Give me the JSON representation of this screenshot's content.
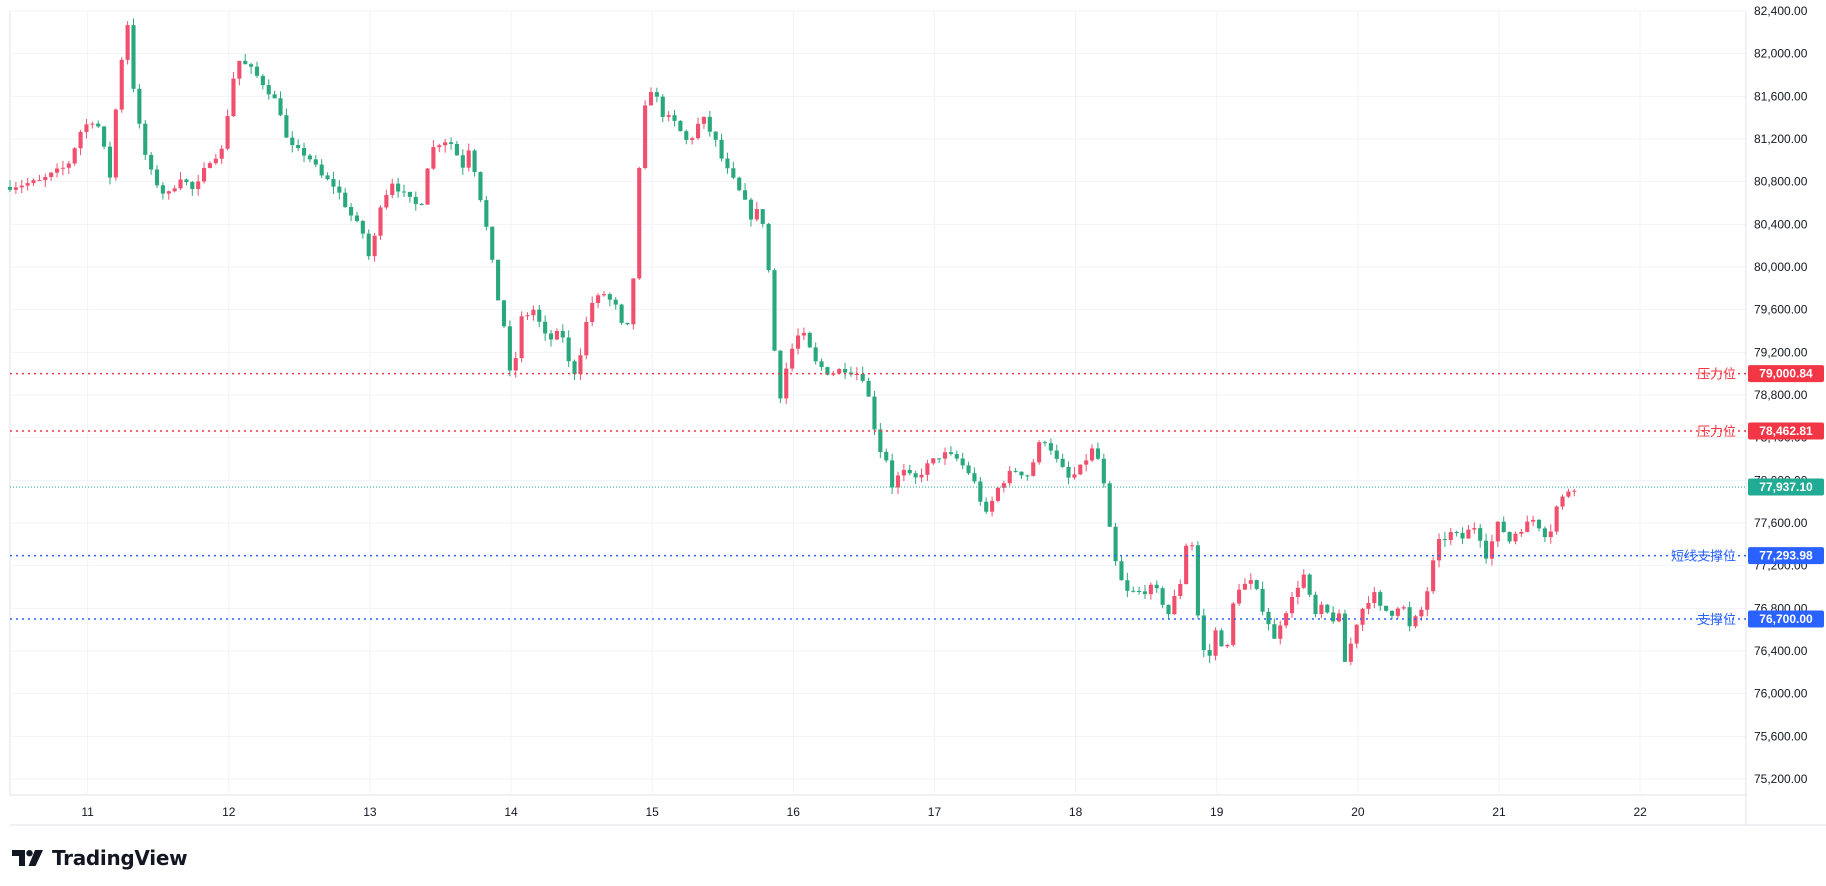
{
  "brand": {
    "name": "TradingView",
    "logo_icon": "tradingview-logo-icon"
  },
  "colors": {
    "up": "#f0506e",
    "down": "#2aa87d",
    "resistance": "#f23645",
    "support": "#2962ff",
    "last_price": "#22ab94"
  },
  "chart_data": {
    "type": "candlestick",
    "title": "",
    "xlabel": "",
    "ylabel": "",
    "ylim": [
      75050,
      82400
    ],
    "y_ticks": [
      "82,400.00",
      "82,000.00",
      "81,600.00",
      "81,200.00",
      "80,800.00",
      "80,400.00",
      "80,000.00",
      "79,600.00",
      "79,200.00",
      "78,800.00",
      "78,400.00",
      "78,000.00",
      "77,600.00",
      "77,200.00",
      "76,800.00",
      "76,400.00",
      "76,000.00",
      "75,600.00",
      "75,200.00"
    ],
    "x_ticks": [
      "11",
      "12",
      "13",
      "14",
      "15",
      "16",
      "17",
      "18",
      "19",
      "20",
      "21",
      "22"
    ],
    "x_range_days": [
      10.45,
      22.75
    ],
    "grid": true,
    "bar_interval_hours": 1,
    "price_path": [
      [
        10.45,
        80750
      ],
      [
        10.7,
        80800
      ],
      [
        10.9,
        80950
      ],
      [
        11.0,
        81300
      ],
      [
        11.1,
        81400
      ],
      [
        11.15,
        81150
      ],
      [
        11.2,
        80850
      ],
      [
        11.25,
        81600
      ],
      [
        11.32,
        82350
      ],
      [
        11.38,
        81500
      ],
      [
        11.45,
        81050
      ],
      [
        11.5,
        80850
      ],
      [
        11.6,
        80650
      ],
      [
        11.7,
        80850
      ],
      [
        11.8,
        80700
      ],
      [
        11.9,
        81000
      ],
      [
        12.0,
        81100
      ],
      [
        12.05,
        81600
      ],
      [
        12.1,
        81950
      ],
      [
        12.2,
        81850
      ],
      [
        12.3,
        81700
      ],
      [
        12.35,
        81600
      ],
      [
        12.4,
        81500
      ],
      [
        12.45,
        81200
      ],
      [
        12.5,
        81100
      ],
      [
        12.6,
        81050
      ],
      [
        12.7,
        80850
      ],
      [
        12.8,
        80750
      ],
      [
        12.9,
        80500
      ],
      [
        13.0,
        80300
      ],
      [
        13.05,
        80000
      ],
      [
        13.1,
        80550
      ],
      [
        13.2,
        80800
      ],
      [
        13.3,
        80650
      ],
      [
        13.4,
        80550
      ],
      [
        13.45,
        80950
      ],
      [
        13.5,
        81150
      ],
      [
        13.6,
        81200
      ],
      [
        13.7,
        80950
      ],
      [
        13.75,
        81150
      ],
      [
        13.8,
        80800
      ],
      [
        13.85,
        80500
      ],
      [
        13.9,
        80100
      ],
      [
        13.95,
        79700
      ],
      [
        14.0,
        79400
      ],
      [
        14.05,
        78800
      ],
      [
        14.1,
        79500
      ],
      [
        14.2,
        79600
      ],
      [
        14.3,
        79300
      ],
      [
        14.4,
        79400
      ],
      [
        14.45,
        79100
      ],
      [
        14.5,
        79000
      ],
      [
        14.55,
        79300
      ],
      [
        14.6,
        79650
      ],
      [
        14.7,
        79750
      ],
      [
        14.8,
        79600
      ],
      [
        14.85,
        79300
      ],
      [
        14.9,
        79700
      ],
      [
        14.95,
        80900
      ],
      [
        15.0,
        81600
      ],
      [
        15.05,
        81700
      ],
      [
        15.1,
        81450
      ],
      [
        15.2,
        81350
      ],
      [
        15.3,
        81150
      ],
      [
        15.35,
        81300
      ],
      [
        15.4,
        81400
      ],
      [
        15.5,
        81150
      ],
      [
        15.55,
        80950
      ],
      [
        15.6,
        80850
      ],
      [
        15.7,
        80600
      ],
      [
        15.75,
        80450
      ],
      [
        15.8,
        80550
      ],
      [
        15.85,
        80300
      ],
      [
        15.9,
        79300
      ],
      [
        15.95,
        78800
      ],
      [
        16.0,
        79100
      ],
      [
        16.05,
        79300
      ],
      [
        16.1,
        79400
      ],
      [
        16.2,
        79100
      ],
      [
        16.3,
        79000
      ],
      [
        16.4,
        79050
      ],
      [
        16.5,
        79000
      ],
      [
        16.55,
        78950
      ],
      [
        16.6,
        78600
      ],
      [
        16.65,
        78300
      ],
      [
        16.7,
        78200
      ],
      [
        16.75,
        77900
      ],
      [
        16.8,
        78100
      ],
      [
        16.9,
        78000
      ],
      [
        17.0,
        78150
      ],
      [
        17.1,
        78250
      ],
      [
        17.2,
        78200
      ],
      [
        17.3,
        78050
      ],
      [
        17.35,
        77900
      ],
      [
        17.4,
        77650
      ],
      [
        17.5,
        77950
      ],
      [
        17.6,
        78100
      ],
      [
        17.7,
        78050
      ],
      [
        17.75,
        78200
      ],
      [
        17.8,
        78400
      ],
      [
        17.85,
        78350
      ],
      [
        17.9,
        78200
      ],
      [
        18.0,
        78000
      ],
      [
        18.1,
        78150
      ],
      [
        18.15,
        78300
      ],
      [
        18.2,
        78200
      ],
      [
        18.25,
        77900
      ],
      [
        18.3,
        77350
      ],
      [
        18.35,
        77100
      ],
      [
        18.4,
        76950
      ],
      [
        18.5,
        76950
      ],
      [
        18.6,
        77000
      ],
      [
        18.7,
        76750
      ],
      [
        18.8,
        77100
      ],
      [
        18.85,
        77700
      ],
      [
        18.9,
        76800
      ],
      [
        18.95,
        76400
      ],
      [
        19.0,
        76350
      ],
      [
        19.05,
        76700
      ],
      [
        19.1,
        76250
      ],
      [
        19.15,
        76800
      ],
      [
        19.2,
        77000
      ],
      [
        19.3,
        77050
      ],
      [
        19.35,
        76850
      ],
      [
        19.4,
        76700
      ],
      [
        19.45,
        76500
      ],
      [
        19.5,
        76700
      ],
      [
        19.6,
        76950
      ],
      [
        19.65,
        77150
      ],
      [
        19.7,
        76900
      ],
      [
        19.75,
        76700
      ],
      [
        19.8,
        76850
      ],
      [
        19.85,
        76650
      ],
      [
        19.9,
        76800
      ],
      [
        19.95,
        76300
      ],
      [
        20.0,
        76500
      ],
      [
        20.05,
        76750
      ],
      [
        20.1,
        76850
      ],
      [
        20.15,
        76950
      ],
      [
        20.2,
        76800
      ],
      [
        20.3,
        76750
      ],
      [
        20.35,
        76900
      ],
      [
        20.4,
        76600
      ],
      [
        20.45,
        76700
      ],
      [
        20.5,
        76800
      ],
      [
        20.55,
        77050
      ],
      [
        20.6,
        77400
      ],
      [
        20.7,
        77500
      ],
      [
        20.8,
        77450
      ],
      [
        20.85,
        77600
      ],
      [
        20.9,
        77500
      ],
      [
        20.95,
        77300
      ],
      [
        21.0,
        77450
      ],
      [
        21.05,
        77650
      ],
      [
        21.1,
        77400
      ],
      [
        21.15,
        77500
      ],
      [
        21.2,
        77550
      ],
      [
        21.25,
        77600
      ],
      [
        21.3,
        77650
      ],
      [
        21.35,
        77500
      ],
      [
        21.4,
        77500
      ],
      [
        21.45,
        77750
      ],
      [
        21.5,
        77850
      ],
      [
        21.55,
        77937
      ]
    ],
    "levels": [
      {
        "label": "压力位",
        "value": 79000.84,
        "value_label": "79,000.84",
        "kind": "resistance"
      },
      {
        "label": "压力位",
        "value": 78462.81,
        "value_label": "78,462.81",
        "kind": "resistance"
      },
      {
        "label": "",
        "value": 77937.1,
        "value_label": "77,937.10",
        "kind": "last"
      },
      {
        "label": "短线支撑位",
        "value": 77293.98,
        "value_label": "77,293.98",
        "kind": "support"
      },
      {
        "label": "支撑位",
        "value": 76700.0,
        "value_label": "76,700.00",
        "kind": "support"
      }
    ]
  }
}
